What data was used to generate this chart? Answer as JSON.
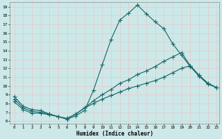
{
  "xlabel": "Humidex (Indice chaleur)",
  "background_color": "#cde8e8",
  "grid_color": "#e8c8c8",
  "line_color": "#1a6b6b",
  "xlim": [
    -0.5,
    23.3
  ],
  "ylim": [
    5.7,
    19.5
  ],
  "xticks": [
    0,
    1,
    2,
    3,
    4,
    5,
    6,
    7,
    8,
    9,
    10,
    11,
    12,
    13,
    14,
    15,
    16,
    17,
    18,
    19,
    20,
    21,
    22,
    23
  ],
  "yticks": [
    6,
    7,
    8,
    9,
    10,
    11,
    12,
    13,
    14,
    15,
    16,
    17,
    18,
    19
  ],
  "line1_x": [
    0,
    1,
    2,
    3,
    4,
    5,
    6,
    7,
    8,
    9,
    10,
    11,
    12,
    13,
    14,
    15,
    16,
    17,
    18,
    19,
    20,
    21,
    22,
    23
  ],
  "line1_y": [
    8.8,
    7.7,
    7.3,
    7.2,
    6.8,
    6.5,
    6.2,
    6.6,
    7.2,
    9.5,
    12.4,
    15.3,
    17.5,
    18.3,
    19.2,
    18.2,
    17.3,
    16.5,
    14.8,
    13.5,
    12.2,
    11.1,
    10.2,
    9.8
  ],
  "line2_x": [
    0,
    1,
    2,
    3,
    4,
    5,
    6,
    7,
    8,
    9,
    10,
    11,
    12,
    13,
    14,
    15,
    16,
    17,
    18,
    19,
    20,
    21,
    22,
    23
  ],
  "line2_y": [
    8.5,
    7.5,
    7.1,
    7.0,
    6.8,
    6.5,
    6.3,
    6.8,
    7.5,
    8.3,
    9.0,
    9.6,
    10.3,
    10.7,
    11.3,
    11.7,
    12.2,
    12.8,
    13.3,
    13.8,
    12.3,
    11.2,
    10.3,
    9.8
  ],
  "line3_x": [
    0,
    1,
    2,
    3,
    4,
    5,
    6,
    7,
    8,
    9,
    10,
    11,
    12,
    13,
    14,
    15,
    16,
    17,
    18,
    19,
    20,
    21,
    22,
    23
  ],
  "line3_y": [
    8.2,
    7.3,
    6.9,
    6.9,
    6.7,
    6.5,
    6.3,
    6.8,
    7.5,
    8.0,
    8.5,
    8.9,
    9.3,
    9.7,
    10.0,
    10.3,
    10.6,
    11.0,
    11.5,
    12.0,
    12.3,
    11.2,
    10.3,
    9.8
  ]
}
